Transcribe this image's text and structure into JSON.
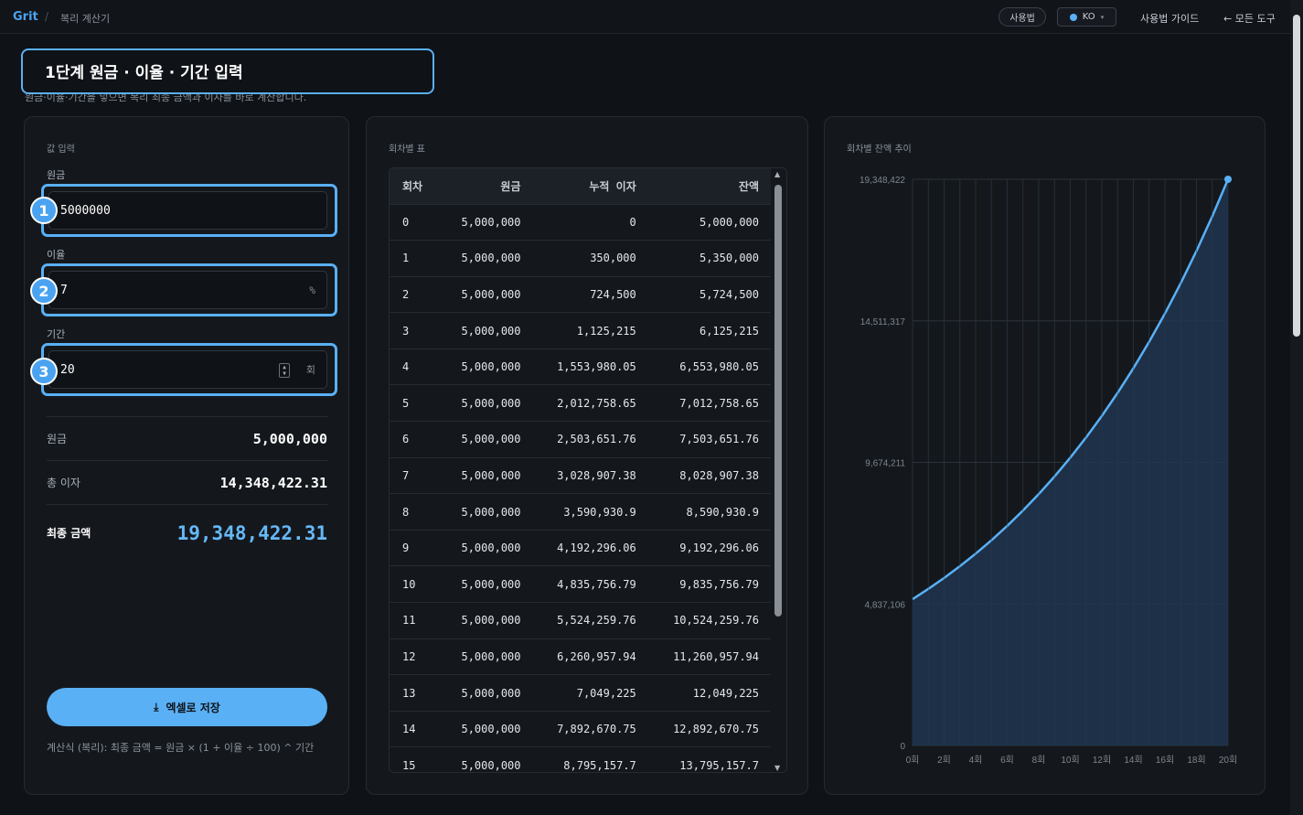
{
  "header": {
    "brand": "Grit",
    "separator": "/",
    "breadcrumb": "복리 계산기",
    "usage_label": "사용법",
    "lang_label": "KO",
    "guide_label": "사용법 가이드",
    "all_tools_label": "← 모든 도구"
  },
  "step_banner": "1단계 원금 · 이율 · 기간 입력",
  "subtitle": "원금·이율·기간을 넣으면 복리 최종 금액과 이자를 바로 계산합니다.",
  "inputs": {
    "section_title": "값 입력",
    "principal_label": "원금",
    "principal_value": "5000000",
    "rate_label": "이율",
    "rate_value": "7",
    "rate_suffix": "%",
    "period_label": "기간",
    "period_value": "20",
    "period_suffix": "회",
    "badges": [
      "1",
      "2",
      "3"
    ]
  },
  "summary": {
    "principal_label": "원금",
    "principal_value": "5,000,000",
    "interest_label": "총 이자",
    "interest_value": "14,348,422.31",
    "final_label": "최종 금액",
    "final_value": "19,348,422.31"
  },
  "excel_button": "엑셀로 저장",
  "formula": "계산식 (복리): 최종 금액 = 원금 × (1 + 이율 ÷ 100) ^ 기간",
  "table": {
    "title": "회차별 표",
    "headers": [
      "회차",
      "원금",
      "누적 이자",
      "잔액"
    ],
    "rows": [
      [
        "0",
        "5,000,000",
        "0",
        "5,000,000"
      ],
      [
        "1",
        "5,000,000",
        "350,000",
        "5,350,000"
      ],
      [
        "2",
        "5,000,000",
        "724,500",
        "5,724,500"
      ],
      [
        "3",
        "5,000,000",
        "1,125,215",
        "6,125,215"
      ],
      [
        "4",
        "5,000,000",
        "1,553,980.05",
        "6,553,980.05"
      ],
      [
        "5",
        "5,000,000",
        "2,012,758.65",
        "7,012,758.65"
      ],
      [
        "6",
        "5,000,000",
        "2,503,651.76",
        "7,503,651.76"
      ],
      [
        "7",
        "5,000,000",
        "3,028,907.38",
        "8,028,907.38"
      ],
      [
        "8",
        "5,000,000",
        "3,590,930.9",
        "8,590,930.9"
      ],
      [
        "9",
        "5,000,000",
        "4,192,296.06",
        "9,192,296.06"
      ],
      [
        "10",
        "5,000,000",
        "4,835,756.79",
        "9,835,756.79"
      ],
      [
        "11",
        "5,000,000",
        "5,524,259.76",
        "10,524,259.76"
      ],
      [
        "12",
        "5,000,000",
        "6,260,957.94",
        "11,260,957.94"
      ],
      [
        "13",
        "5,000,000",
        "7,049,225",
        "12,049,225"
      ],
      [
        "14",
        "5,000,000",
        "7,892,670.75",
        "12,892,670.75"
      ],
      [
        "15",
        "5,000,000",
        "8,795,157.7",
        "13,795,157.7"
      ]
    ]
  },
  "chart_data": {
    "type": "area",
    "title": "회차별 잔액 추이",
    "x": [
      0,
      1,
      2,
      3,
      4,
      5,
      6,
      7,
      8,
      9,
      10,
      11,
      12,
      13,
      14,
      15,
      16,
      17,
      18,
      19,
      20
    ],
    "x_tick_labels": [
      "0회",
      "2회",
      "4회",
      "6회",
      "8회",
      "10회",
      "12회",
      "14회",
      "16회",
      "18회",
      "20회"
    ],
    "y_tick_labels": [
      "19,348,422",
      "14,511,317",
      "9,674,211",
      "4,837,106",
      "0"
    ],
    "ylim": [
      0,
      19348422
    ],
    "series": [
      {
        "values": [
          5000000,
          5350000,
          5724500,
          6125215,
          6553980.05,
          7012758.65,
          7503651.76,
          8028907.38,
          8590930.9,
          9192296.06,
          9835756.79,
          10524259.76,
          11260957.94,
          12049225,
          12892670.75,
          13795157.7,
          14760818.74,
          15794076.05,
          16899661.38,
          18082637.67,
          19348422.31
        ]
      }
    ],
    "grid": true,
    "line_color": "#5ab0f5",
    "fill_color": "#1f3550"
  }
}
